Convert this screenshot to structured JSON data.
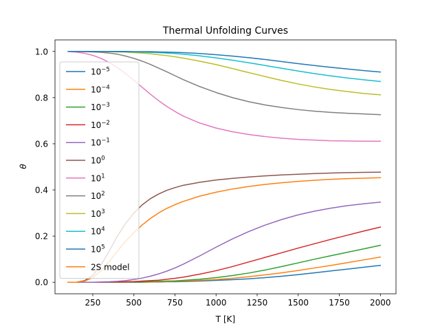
{
  "chart_data": {
    "type": "line",
    "title": "Thermal Unfolding Curves",
    "xlabel": "T [K]",
    "ylabel": "θ",
    "xlim": [
      20,
      2095
    ],
    "ylim": [
      -0.05,
      1.05
    ],
    "xticks": [
      250,
      500,
      750,
      1000,
      1250,
      1500,
      1750,
      2000
    ],
    "yticks": [
      0.0,
      0.2,
      0.4,
      0.6,
      0.8,
      1.0
    ],
    "grid": false,
    "legend_position": "upper-left",
    "x": [
      100,
      150,
      200,
      250,
      300,
      350,
      400,
      450,
      500,
      550,
      600,
      650,
      700,
      750,
      800,
      900,
      1000,
      1100,
      1200,
      1300,
      1400,
      1500,
      1600,
      1700,
      1800,
      1900,
      2000
    ],
    "series": [
      {
        "name": "10^-5",
        "base": "10",
        "exp": "−5",
        "color": "#1f77b4",
        "values": [
          0.0,
          0.0,
          0.0,
          0.0,
          0.0,
          0.0,
          0.0,
          0.0,
          0.0,
          0.0,
          0.001,
          0.001,
          0.002,
          0.002,
          0.003,
          0.005,
          0.008,
          0.011,
          0.015,
          0.02,
          0.026,
          0.033,
          0.041,
          0.049,
          0.057,
          0.065,
          0.073
        ]
      },
      {
        "name": "10^-4",
        "base": "10",
        "exp": "−4",
        "color": "#ff7f0e",
        "values": [
          0.0,
          0.0,
          0.0,
          0.0,
          0.0,
          0.0,
          0.0,
          0.0,
          0.001,
          0.001,
          0.001,
          0.002,
          0.003,
          0.004,
          0.005,
          0.008,
          0.012,
          0.017,
          0.024,
          0.032,
          0.041,
          0.051,
          0.062,
          0.073,
          0.085,
          0.097,
          0.109
        ]
      },
      {
        "name": "10^-3",
        "base": "10",
        "exp": "−3",
        "color": "#2ca02c",
        "values": [
          0.0,
          0.0,
          0.0,
          0.0,
          0.0,
          0.0,
          0.0,
          0.001,
          0.001,
          0.002,
          0.003,
          0.004,
          0.005,
          0.006,
          0.008,
          0.013,
          0.02,
          0.029,
          0.04,
          0.053,
          0.068,
          0.084,
          0.1,
          0.115,
          0.13,
          0.145,
          0.16
        ]
      },
      {
        "name": "10^-2",
        "base": "10",
        "exp": "−2",
        "color": "#d62728",
        "values": [
          0.0,
          0.0,
          0.0,
          0.0,
          0.0,
          0.001,
          0.001,
          0.002,
          0.003,
          0.005,
          0.007,
          0.009,
          0.013,
          0.017,
          0.022,
          0.035,
          0.05,
          0.068,
          0.088,
          0.108,
          0.128,
          0.148,
          0.167,
          0.186,
          0.204,
          0.222,
          0.239
        ]
      },
      {
        "name": "10^-1",
        "base": "10",
        "exp": "−1",
        "color": "#9467bd",
        "values": [
          0.0,
          0.0,
          0.0,
          0.0,
          0.001,
          0.002,
          0.004,
          0.007,
          0.012,
          0.018,
          0.026,
          0.036,
          0.048,
          0.062,
          0.078,
          0.114,
          0.152,
          0.188,
          0.22,
          0.248,
          0.272,
          0.292,
          0.308,
          0.321,
          0.332,
          0.34,
          0.347
        ]
      },
      {
        "name": "10^0",
        "base": "10",
        "exp": "0",
        "color": "#8c564b",
        "values": [
          0.0,
          0.0,
          0.007,
          0.03,
          0.075,
          0.135,
          0.2,
          0.255,
          0.3,
          0.335,
          0.362,
          0.382,
          0.398,
          0.41,
          0.42,
          0.433,
          0.443,
          0.45,
          0.456,
          0.461,
          0.465,
          0.468,
          0.471,
          0.473,
          0.475,
          0.476,
          0.477
        ]
      },
      {
        "name": "10^1",
        "base": "10",
        "exp": "1",
        "color": "#e377c2",
        "values": [
          1.0,
          0.997,
          0.992,
          0.983,
          0.97,
          0.952,
          0.93,
          0.904,
          0.875,
          0.845,
          0.815,
          0.787,
          0.762,
          0.74,
          0.72,
          0.69,
          0.668,
          0.652,
          0.64,
          0.631,
          0.624,
          0.619,
          0.616,
          0.613,
          0.612,
          0.611,
          0.611
        ]
      },
      {
        "name": "10^2",
        "base": "10",
        "exp": "2",
        "color": "#7f7f7f",
        "values": [
          1.0,
          1.0,
          0.999,
          0.998,
          0.996,
          0.993,
          0.988,
          0.98,
          0.97,
          0.958,
          0.944,
          0.928,
          0.912,
          0.895,
          0.878,
          0.848,
          0.822,
          0.8,
          0.782,
          0.768,
          0.757,
          0.748,
          0.741,
          0.736,
          0.732,
          0.729,
          0.726
        ]
      },
      {
        "name": "10^3",
        "base": "10",
        "exp": "3",
        "color": "#bcbd22",
        "values": [
          1.0,
          1.0,
          1.0,
          1.0,
          0.999,
          0.999,
          0.998,
          0.997,
          0.995,
          0.993,
          0.99,
          0.986,
          0.982,
          0.977,
          0.971,
          0.958,
          0.943,
          0.926,
          0.908,
          0.891,
          0.874,
          0.859,
          0.846,
          0.835,
          0.826,
          0.818,
          0.812
        ]
      },
      {
        "name": "10^4",
        "base": "10",
        "exp": "4",
        "color": "#17becf",
        "values": [
          1.0,
          1.0,
          1.0,
          1.0,
          1.0,
          1.0,
          0.999,
          0.999,
          0.998,
          0.997,
          0.996,
          0.995,
          0.993,
          0.991,
          0.988,
          0.981,
          0.972,
          0.962,
          0.951,
          0.939,
          0.927,
          0.915,
          0.904,
          0.894,
          0.885,
          0.877,
          0.87
        ]
      },
      {
        "name": "10^5",
        "base": "10",
        "exp": "5",
        "color": "#1f77b4",
        "values": [
          1.0,
          1.0,
          1.0,
          1.0,
          1.0,
          1.0,
          1.0,
          1.0,
          0.999,
          0.999,
          0.999,
          0.998,
          0.997,
          0.996,
          0.995,
          0.991,
          0.986,
          0.98,
          0.973,
          0.965,
          0.956,
          0.947,
          0.939,
          0.931,
          0.924,
          0.917,
          0.911
        ]
      },
      {
        "name": "2S model",
        "base": "2S model",
        "exp": "",
        "color": "#ff7f0e",
        "values": [
          0.0,
          0.0,
          0.005,
          0.02,
          0.05,
          0.09,
          0.135,
          0.178,
          0.215,
          0.248,
          0.276,
          0.3,
          0.32,
          0.336,
          0.35,
          0.373,
          0.39,
          0.404,
          0.415,
          0.424,
          0.431,
          0.437,
          0.442,
          0.446,
          0.449,
          0.451,
          0.453
        ]
      }
    ]
  }
}
